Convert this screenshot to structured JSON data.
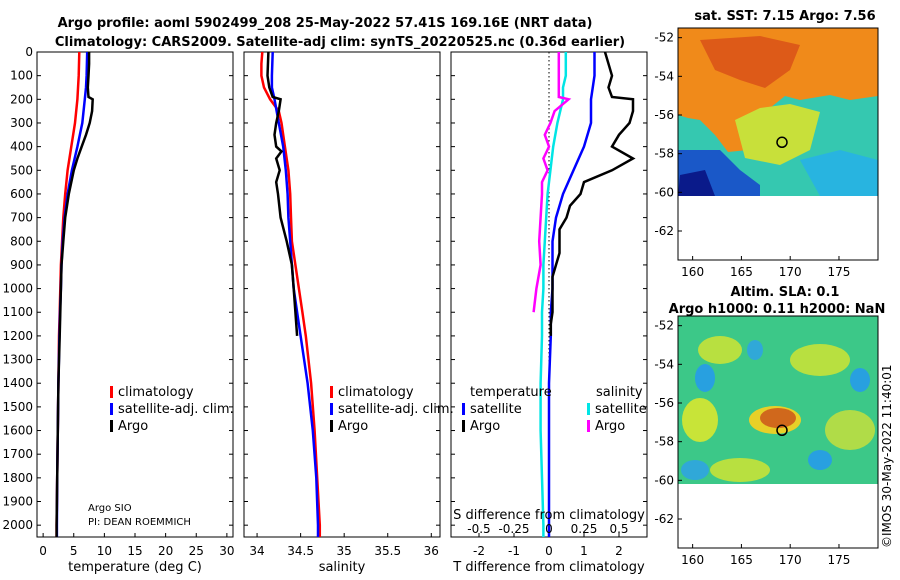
{
  "title": {
    "line1": "Argo profile: aoml 5902499_208 25-May-2022 57.41S 169.16E (NRT data)",
    "line2": "Climatology: CARS2009. Satellite-adj clim: synTS_20220525.nc (0.36d earlier)"
  },
  "colors": {
    "climatology": "#ff0000",
    "satellite_adj": "#0000ff",
    "argo": "#000000",
    "sat_salinity": "#00e5e5",
    "argo_salinity": "#ff00ff"
  },
  "depth_axis": {
    "min": 0,
    "max": 2050,
    "ticks": [
      0,
      100,
      200,
      300,
      400,
      500,
      600,
      700,
      800,
      900,
      1000,
      1100,
      1200,
      1300,
      1400,
      1500,
      1600,
      1700,
      1800,
      1900,
      2000
    ]
  },
  "credits": {
    "line1": "Argo SIO",
    "line2": "PI: DEAN ROEMMICH"
  },
  "timestamp": "©IMOS 30-May-2022 11:40:01",
  "chart_data": [
    {
      "type": "line",
      "id": "temperature",
      "xlabel": "temperature (deg C)",
      "ylabel": "depth",
      "xlim": [
        -1,
        31
      ],
      "xticks": [
        0,
        5,
        10,
        15,
        20,
        25,
        30
      ],
      "legend": [
        "climatology",
        "satellite-adj. clim.",
        "Argo"
      ],
      "series": [
        {
          "name": "climatology",
          "depth": [
            0,
            100,
            200,
            300,
            400,
            500,
            600,
            700,
            800,
            900,
            1000,
            1100,
            1200,
            1400,
            1600,
            1800,
            2000,
            2050
          ],
          "values": [
            5.9,
            5.8,
            5.6,
            5.2,
            4.6,
            4.0,
            3.6,
            3.3,
            3.1,
            2.9,
            2.8,
            2.7,
            2.6,
            2.5,
            2.4,
            2.3,
            2.2,
            2.2
          ]
        },
        {
          "name": "satellite-adj. clim.",
          "depth": [
            0,
            100,
            150,
            200,
            300,
            400,
            500,
            600,
            700,
            800,
            900,
            1000,
            1100,
            1200,
            1400,
            1600,
            1800,
            2000,
            2050
          ],
          "values": [
            7.2,
            7.1,
            7.0,
            6.8,
            6.4,
            5.6,
            4.7,
            4.0,
            3.5,
            3.2,
            3.0,
            2.9,
            2.75,
            2.65,
            2.5,
            2.4,
            2.3,
            2.25,
            2.25
          ]
        },
        {
          "name": "Argo",
          "depth": [
            0,
            50,
            100,
            150,
            190,
            200,
            250,
            300,
            350,
            400,
            450,
            500,
            550,
            600,
            700,
            800,
            900,
            1000,
            1200,
            1400,
            1600,
            1800,
            2000,
            2050
          ],
          "values": [
            7.5,
            7.5,
            7.4,
            7.3,
            7.4,
            8.1,
            8.0,
            7.6,
            7.0,
            6.3,
            5.6,
            5.0,
            4.6,
            4.2,
            3.6,
            3.3,
            3.0,
            2.9,
            2.7,
            2.5,
            2.4,
            2.3,
            2.2,
            2.2
          ]
        }
      ]
    },
    {
      "type": "line",
      "id": "salinity",
      "xlabel": "salinity",
      "ylabel": "depth",
      "xlim": [
        33.85,
        36.1
      ],
      "xticks": [
        34,
        34.5,
        35,
        35.5,
        36
      ],
      "legend": [
        "climatology",
        "satellite-adj. clim.",
        "Argo"
      ],
      "series": [
        {
          "name": "climatology",
          "depth": [
            0,
            50,
            100,
            150,
            200,
            250,
            300,
            400,
            500,
            600,
            700,
            800,
            900,
            1000,
            1100,
            1200,
            1400,
            1600,
            1800,
            2000,
            2050
          ],
          "values": [
            34.06,
            34.05,
            34.05,
            34.08,
            34.15,
            34.25,
            34.28,
            34.32,
            34.36,
            34.38,
            34.39,
            34.4,
            34.44,
            34.48,
            34.52,
            34.56,
            34.62,
            34.66,
            34.69,
            34.72,
            34.72
          ]
        },
        {
          "name": "satellite-adj. clim.",
          "depth": [
            0,
            100,
            150,
            200,
            300,
            400,
            500,
            600,
            700,
            800,
            900,
            1000,
            1100,
            1200,
            1400,
            1600,
            1800,
            2000,
            2050
          ],
          "values": [
            34.18,
            34.17,
            34.17,
            34.2,
            34.25,
            34.3,
            34.33,
            34.35,
            34.36,
            34.38,
            34.4,
            34.42,
            34.46,
            34.5,
            34.58,
            34.64,
            34.68,
            34.7,
            34.7
          ]
        },
        {
          "name": "Argo",
          "depth": [
            0,
            100,
            150,
            190,
            200,
            250,
            300,
            350,
            400,
            420,
            450,
            500,
            550,
            600,
            700,
            800,
            900,
            1000,
            1100,
            1200
          ],
          "values": [
            34.13,
            34.12,
            34.14,
            34.18,
            34.27,
            34.25,
            34.22,
            34.2,
            34.22,
            34.28,
            34.22,
            34.26,
            34.22,
            34.24,
            34.27,
            34.34,
            34.4,
            34.42,
            34.44,
            34.46
          ]
        }
      ]
    },
    {
      "type": "line",
      "id": "difference",
      "xlabel": "T difference from climatology",
      "x2label": "S difference from climatology",
      "xlim": [
        -2.8,
        2.8
      ],
      "xticks": [
        -2,
        -1,
        0,
        1,
        2
      ],
      "x2ticks": [
        "-0.5",
        "-0.25",
        "0",
        "0.25",
        "0.5"
      ],
      "legend_temperature_title": "temperature",
      "legend_salinity_title": "salinity",
      "legend_temperature": [
        "satellite",
        "Argo"
      ],
      "legend_salinity": [
        "satellite",
        "Argo"
      ],
      "series": [
        {
          "name": "T satellite",
          "depth": [
            0,
            100,
            200,
            300,
            400,
            500,
            600,
            700,
            800,
            900,
            1000,
            1100,
            1200,
            1400,
            1600,
            1800,
            2000,
            2050
          ],
          "values": [
            1.3,
            1.3,
            1.2,
            1.2,
            1.0,
            0.7,
            0.4,
            0.2,
            0.1,
            0.1,
            0.1,
            0.05,
            0.05,
            0.0,
            0.0,
            0.0,
            0.0,
            0.0
          ]
        },
        {
          "name": "T Argo",
          "depth": [
            0,
            50,
            100,
            150,
            190,
            200,
            250,
            300,
            350,
            400,
            450,
            500,
            550,
            600,
            650,
            700,
            750,
            800,
            850,
            900,
            950,
            1000,
            1050,
            1100,
            1150,
            1200
          ],
          "values": [
            1.6,
            1.7,
            1.8,
            1.7,
            1.8,
            2.4,
            2.4,
            2.3,
            2.0,
            1.8,
            2.4,
            1.8,
            1.0,
            0.9,
            0.6,
            0.5,
            0.3,
            0.3,
            0.3,
            0.2,
            0.1,
            0.1,
            0.1,
            0.1,
            0.05,
            0.05
          ]
        },
        {
          "name": "S satellite",
          "depth": [
            0,
            100,
            150,
            200,
            300,
            400,
            500,
            600,
            700,
            800,
            900,
            1000,
            1100,
            1200,
            1400,
            1600,
            1800,
            2000,
            2050
          ],
          "values": [
            0.12,
            0.12,
            0.1,
            0.1,
            0.06,
            0.03,
            0.01,
            -0.01,
            -0.02,
            -0.03,
            -0.04,
            -0.04,
            -0.05,
            -0.05,
            -0.06,
            -0.06,
            -0.05,
            -0.04,
            -0.04
          ]
        },
        {
          "name": "S Argo",
          "depth": [
            0,
            50,
            100,
            150,
            190,
            200,
            250,
            300,
            350,
            400,
            450,
            500,
            550,
            600,
            700,
            800,
            900,
            1000,
            1100
          ],
          "values": [
            0.07,
            0.07,
            0.07,
            0.07,
            0.07,
            0.14,
            0.04,
            0.01,
            -0.03,
            0.0,
            -0.04,
            -0.01,
            -0.05,
            -0.05,
            -0.06,
            -0.07,
            -0.06,
            -0.09,
            -0.11
          ]
        }
      ]
    },
    {
      "type": "heatmap",
      "id": "sst_map",
      "title": "sat. SST: 7.15 Argo: 7.56",
      "xticks": [
        160,
        165,
        170,
        175
      ],
      "yticks": [
        -52,
        -54,
        -56,
        -58,
        -60,
        -62
      ],
      "xlim": [
        158.5,
        179
      ],
      "ylim": [
        -63.5,
        -51.5
      ],
      "data_lat_range": [
        -60,
        -51.5
      ],
      "float_position": [
        169.16,
        -57.41
      ]
    },
    {
      "type": "heatmap",
      "id": "sla_map",
      "title_line1": "Altim. SLA: 0.1",
      "title_line2": "Argo h1000: 0.11 h2000: NaN",
      "xticks": [
        160,
        165,
        170,
        175
      ],
      "yticks": [
        -52,
        -54,
        -56,
        -58,
        -60,
        -62
      ],
      "xlim": [
        158.5,
        179
      ],
      "ylim": [
        -63.5,
        -51.5
      ],
      "data_lat_range": [
        -60,
        -51.5
      ],
      "float_position": [
        169.16,
        -57.41
      ]
    }
  ]
}
